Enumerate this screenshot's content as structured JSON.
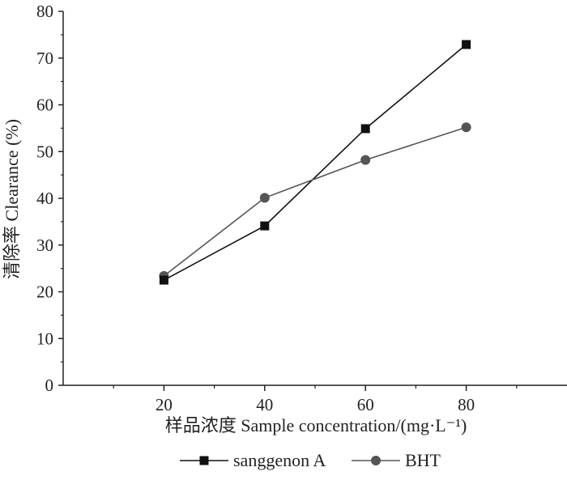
{
  "chart_data": {
    "type": "line",
    "title": "",
    "xlabel": "样品浓度 Sample concentration/(mg·L⁻¹)",
    "ylabel": "清除率 Clearance (%)",
    "x": [
      20,
      40,
      60,
      80
    ],
    "xlim": [
      0,
      100
    ],
    "ylim": [
      0,
      80
    ],
    "xticks": [
      20,
      40,
      60,
      80
    ],
    "yticks": [
      0,
      10,
      20,
      30,
      40,
      50,
      60,
      70,
      80
    ],
    "grid": false,
    "legend_position": "bottom",
    "series": [
      {
        "name": "sanggenon A",
        "values": [
          22.5,
          34.1,
          54.9,
          72.9
        ],
        "marker": "square",
        "color": "#111111"
      },
      {
        "name": "BHT",
        "values": [
          23.4,
          40.1,
          48.2,
          55.2
        ],
        "marker": "circle",
        "color": "#555555"
      }
    ]
  }
}
